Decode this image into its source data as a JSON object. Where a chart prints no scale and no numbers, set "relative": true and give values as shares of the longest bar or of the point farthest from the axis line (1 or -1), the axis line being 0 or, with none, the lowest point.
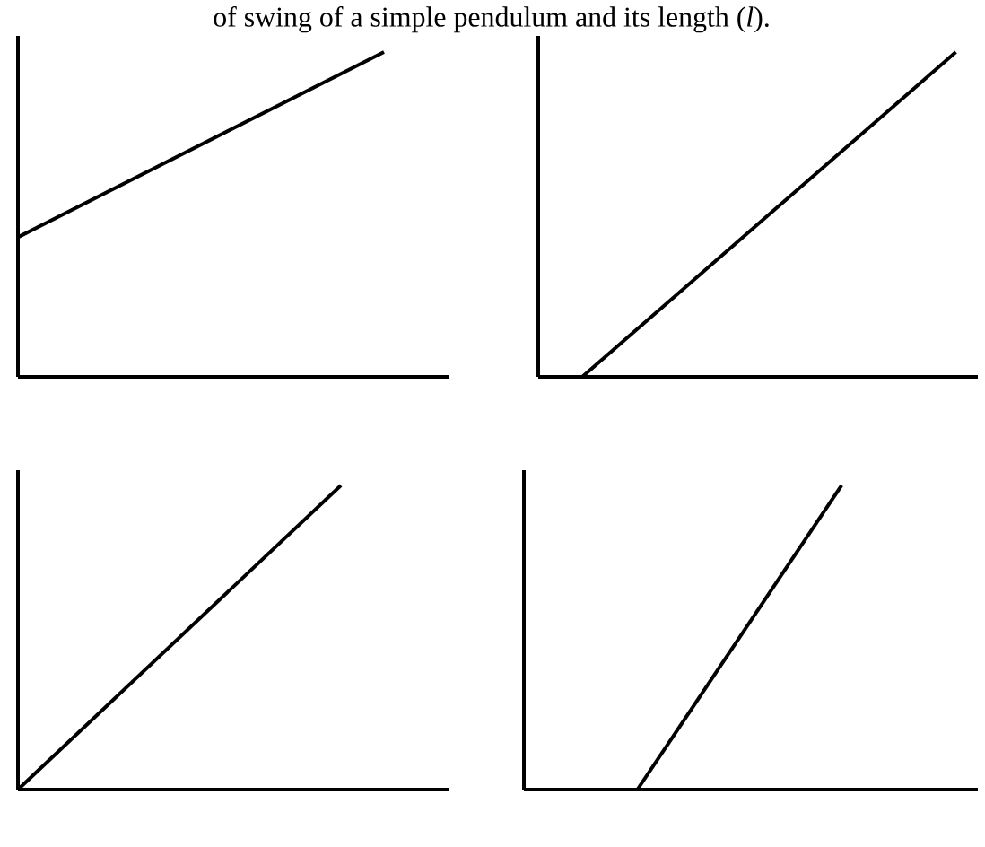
{
  "chart_data": [
    {
      "type": "line",
      "title": "of swing of a simple pendulum and its length (*l*).",
      "relative": true,
      "categories": [
        null,
        null,
        null,
        null,
        null,
        null,
        null,
        null,
        null,
        null,
        null,
        null,
        null,
        null,
        null,
        null,
        null,
        null,
        null,
        null,
        null
      ],
      "series": [
        {
          "color": "#000000",
          "values": [
            0.43,
            null,
            null,
            null,
            null,
            null,
            null,
            null,
            null,
            null,
            null,
            null,
            null,
            null,
            null,
            null,
            null,
            1,
            null,
            null,
            null
          ]
        }
      ]
    },
    {
      "type": "line",
      "relative": true,
      "categories": [
        null,
        null,
        null,
        null,
        null,
        null,
        null,
        null,
        null,
        null,
        null,
        null,
        null,
        null,
        null,
        null,
        null,
        null,
        null,
        null,
        null
      ],
      "series": [
        {
          "color": "#000000",
          "values": [
            null,
            null,
            0,
            null,
            null,
            null,
            null,
            null,
            null,
            null,
            null,
            null,
            null,
            null,
            null,
            null,
            null,
            null,
            null,
            1,
            null
          ]
        }
      ]
    },
    {
      "type": "line",
      "relative": true,
      "categories": [
        null,
        null,
        null,
        null,
        null,
        null,
        null,
        null,
        null,
        null,
        null,
        null,
        null,
        null,
        null,
        null,
        null,
        null,
        null,
        null,
        null
      ],
      "series": [
        {
          "color": "#000000",
          "values": [
            0,
            null,
            null,
            null,
            null,
            null,
            null,
            null,
            null,
            null,
            null,
            null,
            null,
            null,
            null,
            1,
            null,
            null,
            null,
            null,
            null
          ]
        }
      ]
    },
    {
      "type": "line",
      "relative": true,
      "categories": [
        null,
        null,
        null,
        null,
        null,
        null,
        null,
        null,
        null,
        null,
        null,
        null,
        null,
        null,
        null,
        null,
        null,
        null,
        null,
        null,
        null
      ],
      "series": [
        {
          "color": "#000000",
          "values": [
            null,
            null,
            null,
            null,
            null,
            0,
            null,
            null,
            null,
            null,
            null,
            null,
            null,
            null,
            1,
            null,
            null,
            null,
            null,
            null,
            null
          ]
        }
      ]
    }
  ]
}
